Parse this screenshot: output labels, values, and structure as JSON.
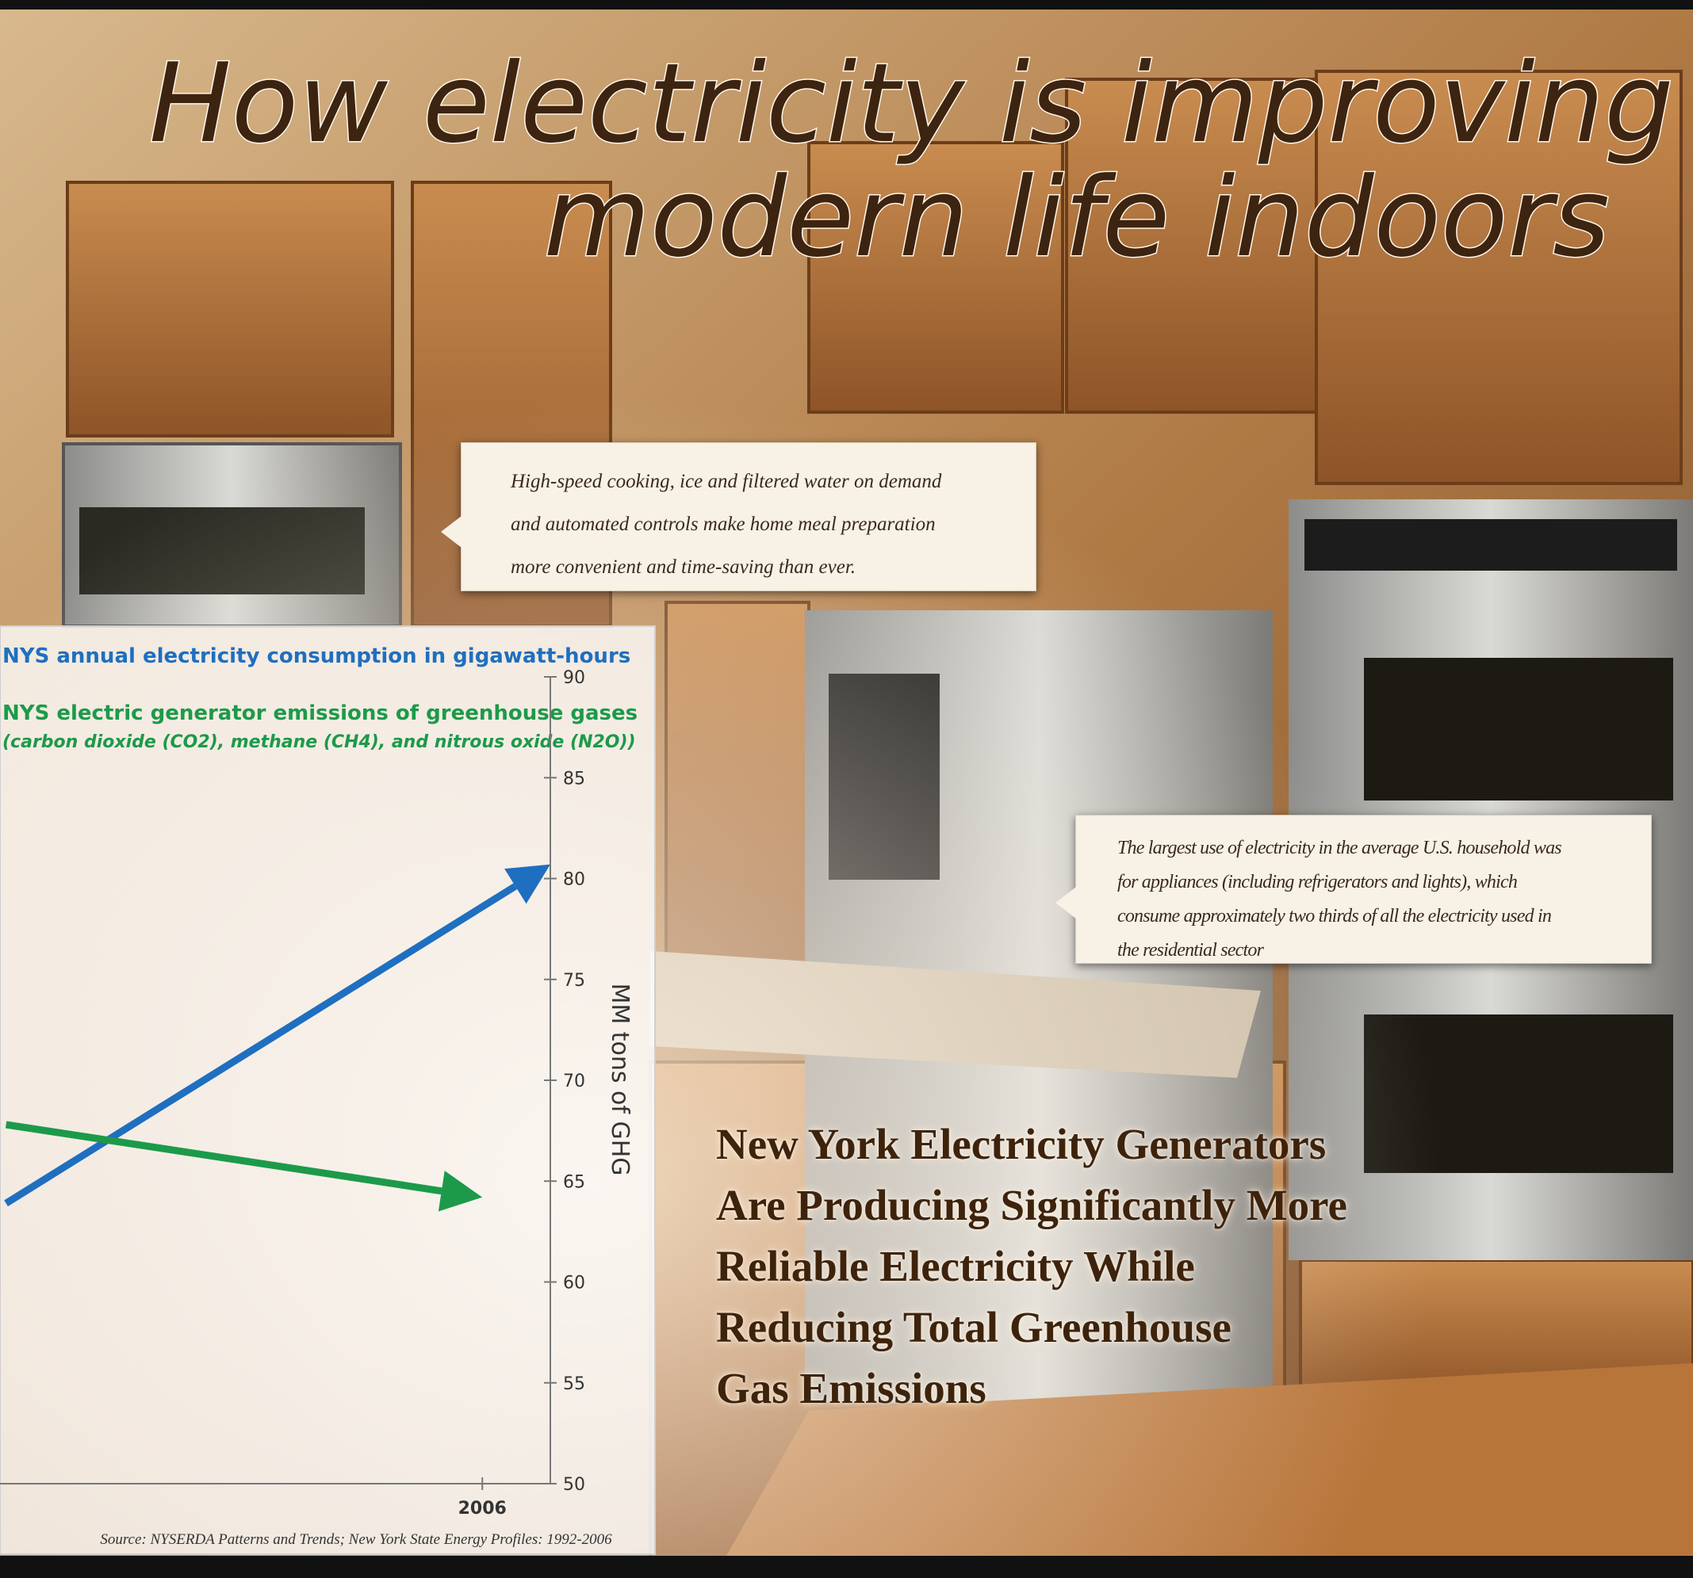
{
  "title_lines": [
    "How electricity is improving",
    "modern life indoors"
  ],
  "callouts": [
    {
      "lines": [
        "High-speed cooking, ice and filtered water on demand",
        "and automated controls make home meal preparation",
        "more convenient and time-saving than ever."
      ]
    },
    {
      "lines": [
        "The largest use of electricity in the average U.S. household was",
        "for appliances (including refrigerators and lights), which",
        "consume approximately two thirds of all the electricity used in",
        "the residential sector"
      ]
    }
  ],
  "headline": [
    "New York Electricity Generators",
    "Are Producing Significantly More",
    "Reliable Electricity While",
    "Reducing Total Greenhouse",
    "Gas Emissions"
  ],
  "chart_data": {
    "type": "arrow-line",
    "series": [
      {
        "name": "NYS annual electricity consumption in gigawatt-hours",
        "color": "#1f6fc0",
        "x": [
          1999,
          2007
        ],
        "values": [
          63.9,
          80.7
        ]
      },
      {
        "name": "NYS electric  generator emissions of greenhouse gases",
        "subtitle": "(carbon dioxide (CO2), methane (CH4), and nitrous oxide (N2O))",
        "color": "#1c9a4a",
        "x": [
          1999,
          2006
        ],
        "values": [
          67.8,
          64.2
        ]
      }
    ],
    "y_label": "MM tons of GHG",
    "xlim": [
      1992,
      2007
    ],
    "xticks": [
      2006
    ],
    "ylim": [
      50,
      90
    ],
    "yticks": [
      50,
      55,
      60,
      65,
      70,
      75,
      80,
      85,
      90
    ],
    "source": "Source: NYSERDA Patterns and Trends; New York State Energy Profiles: 1992-2006"
  }
}
